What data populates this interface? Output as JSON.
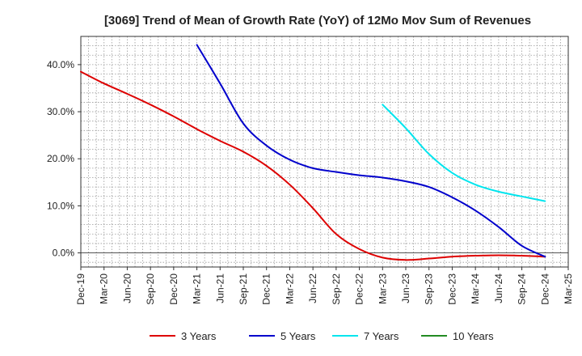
{
  "chart_data": {
    "type": "line",
    "title": "[3069]  Trend of Mean of Growth Rate (YoY) of 12Mo Mov Sum of Revenues",
    "xlabel": "",
    "ylabel": "",
    "ylim": [
      -3,
      46
    ],
    "y_ticks": [
      0,
      10,
      20,
      30,
      40
    ],
    "y_tick_labels": [
      "0.0%",
      "10.0%",
      "20.0%",
      "30.0%",
      "40.0%"
    ],
    "x_tick_labels": [
      "Dec-19",
      "Mar-20",
      "Jun-20",
      "Sep-20",
      "Dec-20",
      "Mar-21",
      "Jun-21",
      "Sep-21",
      "Dec-21",
      "Mar-22",
      "Jun-22",
      "Sep-22",
      "Dec-22",
      "Mar-23",
      "Jun-23",
      "Sep-23",
      "Dec-23",
      "Mar-24",
      "Jun-24",
      "Sep-24",
      "Dec-24",
      "Mar-25"
    ],
    "x_range_quarters": [
      0,
      21
    ],
    "grid": true,
    "legend_position": "bottom",
    "series": [
      {
        "name": "3 Years",
        "color": "#dd0000",
        "x": [
          0,
          1,
          2,
          3,
          4,
          5,
          6,
          7,
          8,
          9,
          10,
          11,
          12,
          13,
          14,
          15,
          16,
          17,
          18,
          19,
          20
        ],
        "values": [
          38.5,
          36.0,
          33.8,
          31.5,
          29.0,
          26.3,
          23.8,
          21.5,
          18.5,
          14.5,
          9.5,
          4.0,
          0.8,
          -1.0,
          -1.5,
          -1.2,
          -0.8,
          -0.6,
          -0.5,
          -0.6,
          -0.8
        ]
      },
      {
        "name": "5 Years",
        "color": "#0000cc",
        "x": [
          5,
          6,
          7,
          8,
          9,
          10,
          11,
          12,
          13,
          14,
          15,
          16,
          17,
          18,
          19,
          20
        ],
        "values": [
          44.2,
          36.0,
          27.5,
          22.8,
          19.8,
          18.0,
          17.2,
          16.5,
          16.0,
          15.2,
          14.0,
          11.8,
          9.0,
          5.5,
          1.5,
          -0.8
        ]
      },
      {
        "name": "7 Years",
        "color": "#00e5ee",
        "x": [
          13,
          14,
          15,
          16,
          17,
          18,
          19,
          20
        ],
        "values": [
          31.5,
          26.5,
          21.0,
          17.0,
          14.5,
          13.0,
          12.0,
          11.0
        ]
      },
      {
        "name": "10 Years",
        "color": "#228b22",
        "x": [],
        "values": []
      }
    ]
  }
}
